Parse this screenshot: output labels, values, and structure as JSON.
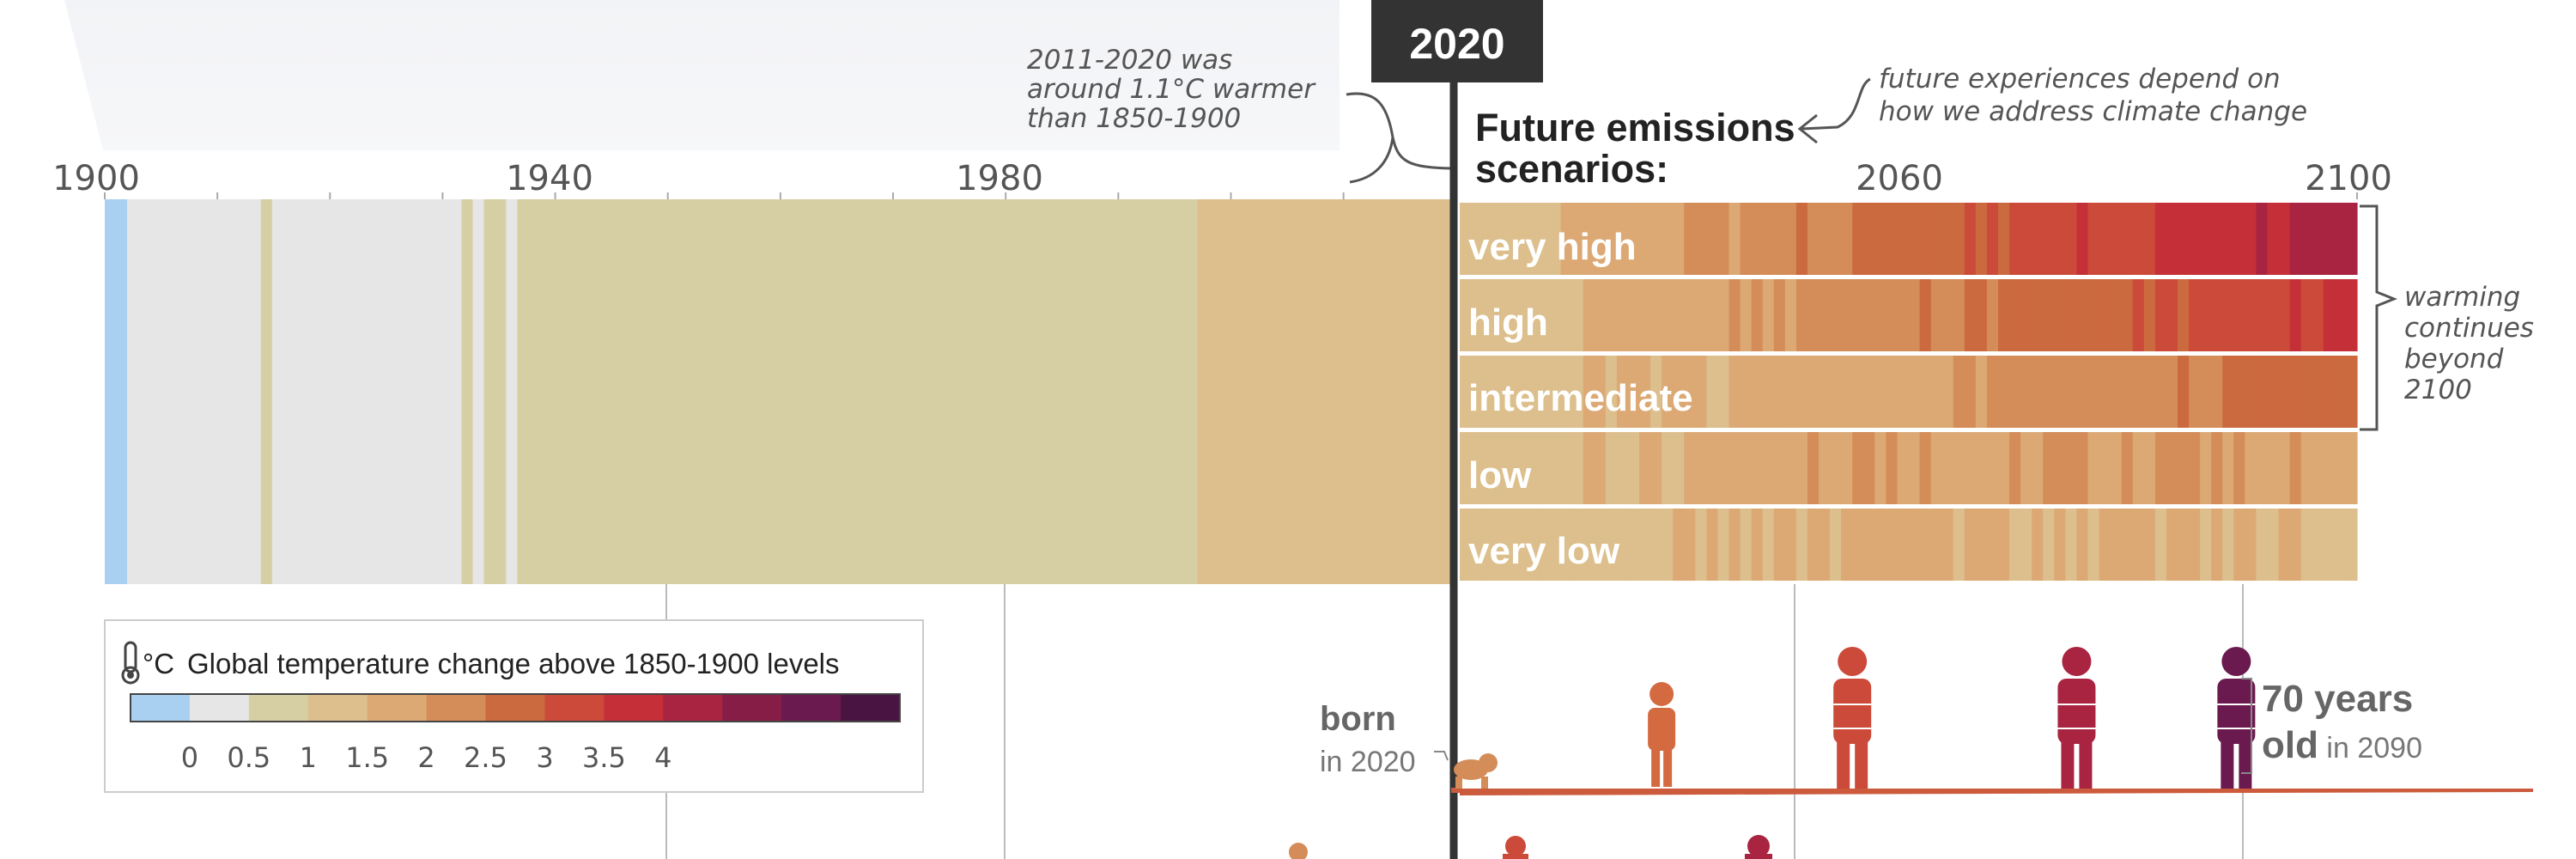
{
  "chart_data": {
    "type": "heatmap",
    "title": "Global temperature change above 1850-1900 levels",
    "unit_symbol": "°C",
    "x_axis": {
      "range": [
        1900,
        2100
      ],
      "ticks": [
        {
          "value": 1900,
          "label": "1900"
        },
        {
          "value": 1940,
          "label": "1940"
        },
        {
          "value": 1980,
          "label": "1980"
        },
        {
          "value": 2060,
          "label": "2060"
        },
        {
          "value": 2100,
          "label": "2100"
        }
      ]
    },
    "color_scale": {
      "stops": [
        "#a9d0f0",
        "#e6e6e6",
        "#d7cfa4",
        "#dcbf8c",
        "#dca975",
        "#d48d58",
        "#cc6a3f",
        "#cc4a39",
        "#c53038",
        "#a82440",
        "#861d47",
        "#6a1a4e",
        "#4a1442"
      ],
      "ticks": [
        "0",
        "0.5",
        "1",
        "1.5",
        "2",
        "2.5",
        "3",
        "3.5",
        "4"
      ],
      "tick_positions": [
        0.5,
        1.5,
        2.5,
        3.5,
        4.5,
        5.5,
        6.5,
        7.5,
        8.5
      ],
      "range_units": [
        -0.5,
        4.5
      ]
    },
    "observed": {
      "years": [
        1900,
        2020
      ],
      "anomalies": [
        -0.1,
        -0.1,
        0.0,
        0.2,
        0.1,
        0.1,
        0.0,
        0.1,
        0.4,
        0.3,
        0.1,
        0.2,
        0.1,
        0.0,
        0.5,
        0.3,
        0.4,
        0.4,
        0.2,
        0.1,
        0.1,
        0.3,
        0.4,
        0.3,
        0.3,
        0.2,
        0.2,
        0.1,
        0.4,
        0.3,
        0.3,
        0.1,
        0.5,
        0.4,
        0.5,
        0.5,
        0.2,
        0.5,
        0.5,
        0.5,
        0.6,
        0.6,
        0.6,
        0.6,
        0.7,
        0.6,
        0.7,
        0.6,
        0.6,
        0.6,
        0.5,
        0.6,
        0.6,
        0.7,
        0.5,
        0.5,
        0.5,
        0.6,
        0.6,
        0.6,
        0.6,
        0.7,
        0.6,
        0.7,
        0.6,
        0.6,
        0.6,
        0.6,
        0.5,
        0.7,
        0.6,
        0.5,
        0.6,
        0.7,
        0.6,
        0.6,
        0.5,
        0.7,
        0.6,
        0.7,
        0.8,
        0.8,
        0.6,
        0.8,
        0.7,
        0.7,
        0.7,
        0.8,
        0.8,
        0.8,
        0.9,
        0.9,
        0.8,
        0.8,
        0.9,
        0.9,
        0.8,
        0.9,
        1.0,
        1.0,
        1.0,
        1.0,
        1.1,
        1.0,
        1.0,
        1.0,
        1.0,
        1.0,
        1.1,
        1.1,
        1.0,
        1.1,
        1.1,
        1.1,
        1.1,
        1.2,
        1.3,
        1.2,
        1.2,
        1.2,
        1.2
      ]
    },
    "scenarios": [
      {
        "name": "very high",
        "end_value": 4.4
      },
      {
        "name": "high",
        "end_value": 3.6
      },
      {
        "name": "intermediate",
        "end_value": 2.7
      },
      {
        "name": "low",
        "end_value": 1.8
      },
      {
        "name": "very low",
        "end_value": 1.4
      }
    ],
    "highlight_year": 2020,
    "highlight_label": "2020",
    "people": [
      {
        "year": 2020,
        "pose": "crawl"
      },
      {
        "year": 2038,
        "pose": "child"
      },
      {
        "year": 2055,
        "pose": "adult"
      },
      {
        "year": 2075,
        "pose": "adult"
      },
      {
        "year": 2090,
        "pose": "adult"
      }
    ]
  },
  "annotations": {
    "observed_note": [
      "2011-2020 was",
      "around 1.1°C warmer",
      "than 1850-1900"
    ],
    "future_note": [
      "future experiences depend on",
      "how we address climate change"
    ],
    "scenarios_heading": [
      "Future emissions",
      "scenarios:"
    ],
    "warming_note": [
      "warming",
      "continues",
      "beyond",
      "2100"
    ],
    "born_bold": "born",
    "born_year": "in 2020",
    "age_line1": "70 years",
    "age_line2_bold": "old",
    "age_line2_rest": " in 2090"
  },
  "colors": {
    "timeline_line": "#333333",
    "badge_bg": "#333333",
    "bracket": "#555555",
    "gridline": "#bbbbbb",
    "ground": "#cc5a3c",
    "person_young": "#d46a40",
    "person_old": "#6a1a4e"
  }
}
